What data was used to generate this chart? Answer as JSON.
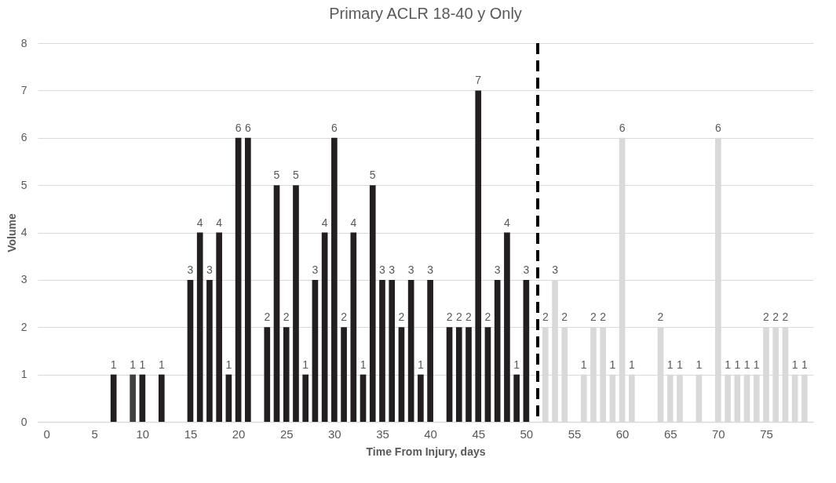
{
  "chart_data": {
    "type": "bar",
    "title": "Primary ACLR 18-40 y Only",
    "xlabel": "Time From Injury, days",
    "ylabel": "Volume",
    "series": [
      {
        "color": "#231f20",
        "x": [
          7,
          10,
          12,
          15,
          16,
          17,
          18,
          19,
          20,
          21,
          23,
          24,
          25,
          26,
          27,
          28,
          29,
          30,
          31,
          32,
          33,
          34,
          35,
          36,
          37,
          38,
          39,
          40,
          42,
          43,
          44,
          45,
          46,
          47,
          48,
          49,
          50
        ],
        "values": [
          1,
          1,
          1,
          3,
          4,
          3,
          4,
          1,
          6,
          6,
          2,
          5,
          2,
          5,
          1,
          3,
          4,
          6,
          2,
          4,
          1,
          5,
          3,
          3,
          2,
          3,
          1,
          3,
          2,
          2,
          2,
          7,
          2,
          3,
          4,
          1,
          3
        ]
      },
      {
        "color": "#404040",
        "x": [
          9
        ],
        "values": [
          1
        ]
      },
      {
        "color": "#d9d9d9",
        "x": [
          52,
          53,
          54,
          56,
          57,
          58,
          59,
          60,
          61,
          64,
          65,
          66,
          68,
          70,
          71,
          72,
          73,
          74,
          75,
          76,
          77,
          78,
          79
        ],
        "values": [
          2,
          3,
          2,
          1,
          2,
          2,
          1,
          6,
          1,
          2,
          1,
          1,
          1,
          6,
          1,
          1,
          1,
          1,
          2,
          2,
          2,
          1,
          1
        ]
      }
    ],
    "xlim": [
      -0.5,
      79.5
    ],
    "xticks": [
      0,
      5,
      10,
      15,
      20,
      25,
      30,
      35,
      40,
      45,
      50,
      55,
      60,
      65,
      70,
      75
    ],
    "ylim": [
      0,
      8
    ],
    "yticks": [
      0,
      1,
      2,
      3,
      4,
      5,
      6,
      7,
      8
    ],
    "ref_lines": [
      {
        "axis": "x",
        "value": 51.2,
        "color": "#000000",
        "line_style": "dashed"
      }
    ],
    "grid": "y",
    "data_labels": true
  }
}
